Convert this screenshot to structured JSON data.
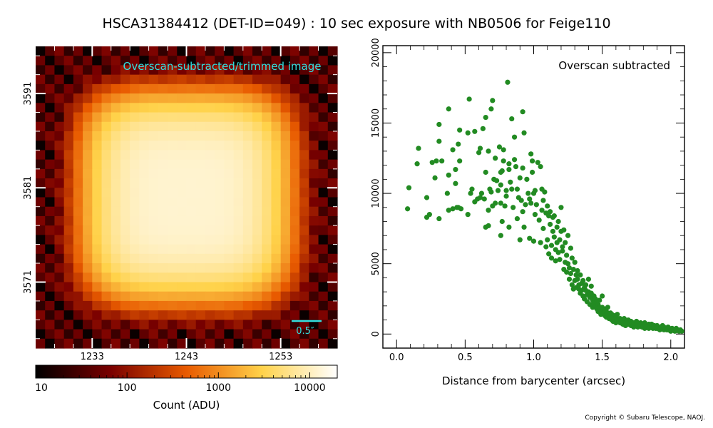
{
  "page": {
    "title": "HSCA31384412 (DET-ID=049) :  10 sec exposure with NB0506 for Feige110",
    "copyright": "Copyright © Subaru Telescope, NAOJ."
  },
  "chart_data": [
    {
      "type": "heatmap",
      "title": "Overscan-subtracted/trimmed image",
      "x_ticks": [
        "1233",
        "1243",
        "1253"
      ],
      "y_ticks": [
        "3591",
        "3581",
        "3571"
      ],
      "x_tick_values": [
        1233,
        1243,
        1253
      ],
      "y_tick_values": [
        3591,
        3581,
        3571
      ],
      "xlim": [
        1227,
        1259
      ],
      "ylim": [
        3564,
        3596
      ],
      "scale_bar_label": "0.5″",
      "colorbar": {
        "label": "Count (ADU)",
        "scale": "log",
        "range": [
          10,
          20000
        ],
        "tick_labels": [
          "10",
          "100",
          "1000",
          "10000"
        ],
        "tick_values": [
          10,
          100,
          1000,
          10000
        ]
      },
      "colors": {
        "low": "#000000",
        "mid": "#e85a00",
        "high": "#ffffff",
        "annotation": "#33e0e0"
      }
    },
    {
      "type": "scatter",
      "annotation": "Overscan subtracted",
      "xlabel": "Distance from barycenter (arcsec)",
      "ylabel": "",
      "xlim": [
        -0.1,
        2.1
      ],
      "ylim": [
        -1000,
        20500
      ],
      "x_ticks": [
        0.0,
        0.5,
        1.0,
        1.5,
        2.0
      ],
      "x_tick_labels": [
        "0.0",
        "0.5",
        "1.0",
        "1.5",
        "2.0"
      ],
      "y_ticks": [
        0,
        5000,
        10000,
        15000,
        20000
      ],
      "y_tick_labels": [
        "0",
        "5000",
        "10000",
        "15000",
        "20000"
      ],
      "point_color": "#228b22",
      "points": [
        [
          0.08,
          8900
        ],
        [
          0.09,
          10400
        ],
        [
          0.15,
          12100
        ],
        [
          0.16,
          13200
        ],
        [
          0.22,
          8300
        ],
        [
          0.22,
          9700
        ],
        [
          0.24,
          8500
        ],
        [
          0.26,
          12200
        ],
        [
          0.28,
          11100
        ],
        [
          0.29,
          12300
        ],
        [
          0.31,
          8200
        ],
        [
          0.31,
          13700
        ],
        [
          0.31,
          14900
        ],
        [
          0.33,
          12300
        ],
        [
          0.37,
          10000
        ],
        [
          0.38,
          11300
        ],
        [
          0.38,
          16000
        ],
        [
          0.38,
          8800
        ],
        [
          0.41,
          8900
        ],
        [
          0.41,
          13100
        ],
        [
          0.43,
          10700
        ],
        [
          0.43,
          11700
        ],
        [
          0.44,
          9000
        ],
        [
          0.45,
          9000
        ],
        [
          0.45,
          13500
        ],
        [
          0.46,
          12300
        ],
        [
          0.46,
          14500
        ],
        [
          0.47,
          8900
        ],
        [
          0.52,
          14300
        ],
        [
          0.52,
          8500
        ],
        [
          0.53,
          16700
        ],
        [
          0.54,
          10000
        ],
        [
          0.55,
          10300
        ],
        [
          0.57,
          9400
        ],
        [
          0.57,
          14400
        ],
        [
          0.59,
          9600
        ],
        [
          0.6,
          12900
        ],
        [
          0.61,
          13200
        ],
        [
          0.61,
          9700
        ],
        [
          0.62,
          10000
        ],
        [
          0.63,
          14600
        ],
        [
          0.64,
          9600
        ],
        [
          0.65,
          7600
        ],
        [
          0.65,
          11500
        ],
        [
          0.65,
          15400
        ],
        [
          0.67,
          13000
        ],
        [
          0.67,
          8800
        ],
        [
          0.67,
          7700
        ],
        [
          0.68,
          10300
        ],
        [
          0.69,
          10100
        ],
        [
          0.69,
          16000
        ],
        [
          0.7,
          9100
        ],
        [
          0.7,
          16600
        ],
        [
          0.71,
          11000
        ],
        [
          0.72,
          12500
        ],
        [
          0.72,
          9300
        ],
        [
          0.73,
          10900
        ],
        [
          0.74,
          10200
        ],
        [
          0.75,
          13300
        ],
        [
          0.76,
          7000
        ],
        [
          0.76,
          9300
        ],
        [
          0.76,
          11500
        ],
        [
          0.76,
          10600
        ],
        [
          0.77,
          11600
        ],
        [
          0.77,
          8000
        ],
        [
          0.78,
          12300
        ],
        [
          0.78,
          13100
        ],
        [
          0.79,
          9100
        ],
        [
          0.8,
          10200
        ],
        [
          0.8,
          9800
        ],
        [
          0.81,
          17900
        ],
        [
          0.82,
          12100
        ],
        [
          0.82,
          7600
        ],
        [
          0.82,
          11700
        ],
        [
          0.83,
          10800
        ],
        [
          0.84,
          15300
        ],
        [
          0.84,
          10300
        ],
        [
          0.85,
          9000
        ],
        [
          0.86,
          14000
        ],
        [
          0.86,
          12400
        ],
        [
          0.87,
          11900
        ],
        [
          0.88,
          10300
        ],
        [
          0.88,
          8200
        ],
        [
          0.89,
          9700
        ],
        [
          0.9,
          6700
        ],
        [
          0.9,
          11100
        ],
        [
          0.91,
          9500
        ],
        [
          0.92,
          15800
        ],
        [
          0.92,
          8700
        ],
        [
          0.92,
          11800
        ],
        [
          0.93,
          14300
        ],
        [
          0.93,
          7600
        ],
        [
          0.94,
          9200
        ],
        [
          0.95,
          11000
        ],
        [
          0.96,
          10000
        ],
        [
          0.97,
          6800
        ],
        [
          0.97,
          9600
        ],
        [
          0.98,
          12800
        ],
        [
          0.98,
          9300
        ],
        [
          0.99,
          12300
        ],
        [
          0.99,
          11500
        ],
        [
          1.0,
          6600
        ],
        [
          1.0,
          10000
        ],
        [
          1.01,
          10200
        ],
        [
          1.01,
          8500
        ],
        [
          1.02,
          9200
        ],
        [
          1.03,
          12200
        ],
        [
          1.04,
          8100
        ],
        [
          1.05,
          6500
        ],
        [
          1.05,
          11900
        ],
        [
          1.06,
          10300
        ],
        [
          1.06,
          8800
        ],
        [
          1.07,
          9500
        ],
        [
          1.07,
          7500
        ],
        [
          1.08,
          10100
        ],
        [
          1.09,
          6200
        ],
        [
          1.09,
          8600
        ],
        [
          1.1,
          9100
        ],
        [
          1.1,
          6700
        ],
        [
          1.11,
          8400
        ],
        [
          1.11,
          5700
        ],
        [
          1.12,
          7800
        ],
        [
          1.12,
          8700
        ],
        [
          1.13,
          6300
        ],
        [
          1.13,
          5400
        ],
        [
          1.14,
          7300
        ],
        [
          1.14,
          8300
        ],
        [
          1.15,
          8400
        ],
        [
          1.15,
          6900
        ],
        [
          1.16,
          5200
        ],
        [
          1.16,
          6000
        ],
        [
          1.17,
          7600
        ],
        [
          1.17,
          6500
        ],
        [
          1.18,
          8000
        ],
        [
          1.18,
          5800
        ],
        [
          1.19,
          6700
        ],
        [
          1.19,
          5300
        ],
        [
          1.2,
          9000
        ],
        [
          1.2,
          7300
        ],
        [
          1.21,
          6200
        ],
        [
          1.21,
          5900
        ],
        [
          1.22,
          4600
        ],
        [
          1.22,
          7400
        ],
        [
          1.23,
          5100
        ],
        [
          1.23,
          6500
        ],
        [
          1.24,
          4400
        ],
        [
          1.24,
          5600
        ],
        [
          1.25,
          7000
        ],
        [
          1.25,
          5000
        ],
        [
          1.26,
          4700
        ],
        [
          1.26,
          3900
        ],
        [
          1.27,
          6100
        ],
        [
          1.27,
          4300
        ],
        [
          1.28,
          5400
        ],
        [
          1.28,
          3500
        ],
        [
          1.29,
          4600
        ],
        [
          1.29,
          3200
        ],
        [
          1.3,
          5100
        ],
        [
          1.3,
          3800
        ],
        [
          1.31,
          4200
        ],
        [
          1.31,
          3300
        ],
        [
          1.32,
          3900
        ],
        [
          1.32,
          4500
        ],
        [
          1.33,
          3200
        ],
        [
          1.33,
          3500
        ],
        [
          1.34,
          4200
        ],
        [
          1.34,
          2900
        ],
        [
          1.35,
          3600
        ],
        [
          1.35,
          3100
        ],
        [
          1.36,
          3800
        ],
        [
          1.36,
          2700
        ],
        [
          1.37,
          3300
        ],
        [
          1.37,
          2500
        ],
        [
          1.38,
          3100
        ],
        [
          1.38,
          3500
        ],
        [
          1.39,
          2800
        ],
        [
          1.39,
          2300
        ],
        [
          1.4,
          3000
        ],
        [
          1.4,
          3900
        ],
        [
          1.41,
          2600
        ],
        [
          1.41,
          2100
        ],
        [
          1.42,
          2900
        ],
        [
          1.42,
          3400
        ],
        [
          1.43,
          2400
        ],
        [
          1.43,
          1900
        ],
        [
          1.44,
          2700
        ],
        [
          1.44,
          2200
        ],
        [
          1.45,
          2000
        ],
        [
          1.45,
          2500
        ],
        [
          1.46,
          1800
        ],
        [
          1.46,
          2300
        ],
        [
          1.47,
          2100
        ],
        [
          1.47,
          1600
        ],
        [
          1.48,
          1900
        ],
        [
          1.48,
          2400
        ],
        [
          1.49,
          1700
        ],
        [
          1.49,
          1400
        ],
        [
          1.5,
          1900
        ],
        [
          1.5,
          2700
        ],
        [
          1.51,
          1500
        ],
        [
          1.51,
          1800
        ],
        [
          1.52,
          1300
        ],
        [
          1.52,
          1700
        ],
        [
          1.53,
          1600
        ],
        [
          1.53,
          1200
        ],
        [
          1.54,
          1400
        ],
        [
          1.54,
          1900
        ],
        [
          1.55,
          1300
        ],
        [
          1.55,
          1100
        ],
        [
          1.56,
          1500
        ],
        [
          1.56,
          1200
        ],
        [
          1.57,
          1000
        ],
        [
          1.57,
          1400
        ],
        [
          1.58,
          1200
        ],
        [
          1.58,
          900
        ],
        [
          1.59,
          1300
        ],
        [
          1.59,
          1100
        ],
        [
          1.6,
          800
        ],
        [
          1.6,
          1200
        ],
        [
          1.61,
          1000
        ],
        [
          1.61,
          1400
        ],
        [
          1.62,
          900
        ],
        [
          1.63,
          1100
        ],
        [
          1.63,
          800
        ],
        [
          1.64,
          1000
        ],
        [
          1.65,
          700
        ],
        [
          1.65,
          900
        ],
        [
          1.66,
          1100
        ],
        [
          1.67,
          800
        ],
        [
          1.67,
          600
        ],
        [
          1.68,
          900
        ],
        [
          1.69,
          700
        ],
        [
          1.69,
          1000
        ],
        [
          1.7,
          800
        ],
        [
          1.71,
          600
        ],
        [
          1.71,
          900
        ],
        [
          1.72,
          700
        ],
        [
          1.73,
          500
        ],
        [
          1.73,
          800
        ],
        [
          1.74,
          600
        ],
        [
          1.75,
          900
        ],
        [
          1.75,
          700
        ],
        [
          1.76,
          500
        ],
        [
          1.77,
          700
        ],
        [
          1.77,
          600
        ],
        [
          1.78,
          800
        ],
        [
          1.79,
          500
        ],
        [
          1.79,
          700
        ],
        [
          1.8,
          600
        ],
        [
          1.81,
          400
        ],
        [
          1.81,
          800
        ],
        [
          1.82,
          600
        ],
        [
          1.83,
          500
        ],
        [
          1.84,
          700
        ],
        [
          1.84,
          400
        ],
        [
          1.85,
          600
        ],
        [
          1.86,
          500
        ],
        [
          1.86,
          700
        ],
        [
          1.87,
          400
        ],
        [
          1.88,
          600
        ],
        [
          1.88,
          500
        ],
        [
          1.89,
          400
        ],
        [
          1.9,
          600
        ],
        [
          1.9,
          400
        ],
        [
          1.91,
          500
        ],
        [
          1.92,
          300
        ],
        [
          1.93,
          500
        ],
        [
          1.93,
          400
        ],
        [
          1.94,
          600
        ],
        [
          1.95,
          300
        ],
        [
          1.95,
          500
        ],
        [
          1.96,
          400
        ],
        [
          1.97,
          300
        ],
        [
          1.98,
          500
        ],
        [
          1.98,
          300
        ],
        [
          1.99,
          400
        ],
        [
          2.0,
          200
        ],
        [
          2.01,
          400
        ],
        [
          2.02,
          300
        ],
        [
          2.03,
          200
        ],
        [
          2.04,
          400
        ],
        [
          2.05,
          300
        ],
        [
          2.06,
          200
        ],
        [
          2.07,
          300
        ],
        [
          2.08,
          200
        ]
      ]
    }
  ]
}
